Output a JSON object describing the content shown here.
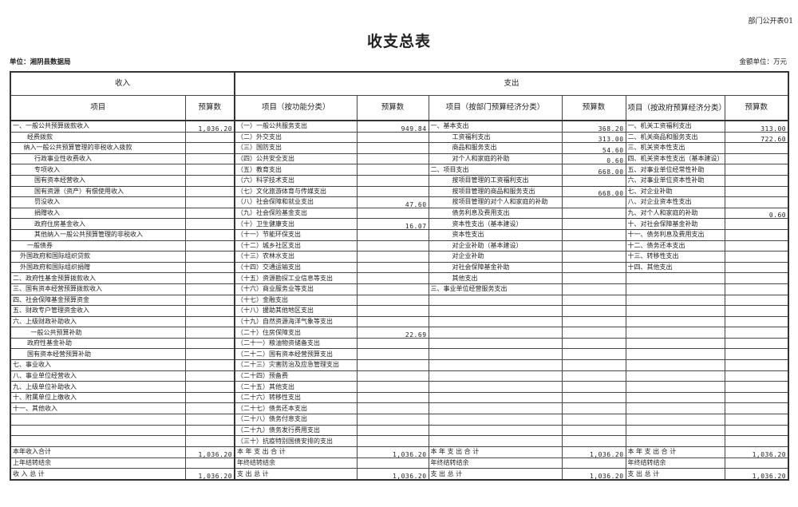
{
  "form_no": "部门公开表01",
  "title": "收支总表",
  "unit_label": "单位：湘阴县数据局",
  "money_unit": "金额单位：万元",
  "header": {
    "income": "收入",
    "expense": "支出",
    "col_item": "项目",
    "col_budget": "预算数",
    "col_func": "项目（按功能分类）",
    "col_dept_econ": "项目（按部门预算经济分类）",
    "col_gov_econ": "项目（按政府预算经济分类）"
  },
  "income_rows": [
    {
      "label": "一、一般公共预算拨款收入",
      "indent": 0,
      "amount": "1,036.20"
    },
    {
      "label": "经费拨款",
      "indent": 2,
      "amount": ""
    },
    {
      "label": "纳入一般公共预算管理的非税收入拨款",
      "indent": 1.5,
      "amount": ""
    },
    {
      "label": "行政事业性收费收入",
      "indent": 3,
      "amount": ""
    },
    {
      "label": "专项收入",
      "indent": 3,
      "amount": ""
    },
    {
      "label": "国有资本经营收入",
      "indent": 3,
      "amount": ""
    },
    {
      "label": "国有资源（资产）有偿使用收入",
      "indent": 3,
      "amount": ""
    },
    {
      "label": "罚没收入",
      "indent": 3,
      "amount": ""
    },
    {
      "label": "捐赠收入",
      "indent": 3,
      "amount": ""
    },
    {
      "label": "政府住房基金收入",
      "indent": 3,
      "amount": ""
    },
    {
      "label": "其他纳入一般公共预算管理的非税收入",
      "indent": 3,
      "amount": ""
    },
    {
      "label": "一般债券",
      "indent": 2,
      "amount": ""
    },
    {
      "label": "外国政府和国际组织贷款",
      "indent": 1,
      "amount": ""
    },
    {
      "label": "外国政府和国际组织捐赠",
      "indent": 1,
      "amount": ""
    },
    {
      "label": "二、政府性基金预算拨款收入",
      "indent": 0,
      "amount": ""
    },
    {
      "label": "三、国有资本经营预算拨款收入",
      "indent": 0,
      "amount": ""
    },
    {
      "label": "四、社会保障基金预算资金",
      "indent": 0,
      "amount": ""
    },
    {
      "label": "五、财政专户管理资金收入",
      "indent": 0,
      "amount": ""
    },
    {
      "label": "六、上级财政补助收入",
      "indent": 0,
      "amount": ""
    },
    {
      "label": "一般公共预算补助",
      "indent": 2.5,
      "amount": ""
    },
    {
      "label": "政府性基金补助",
      "indent": 2,
      "amount": ""
    },
    {
      "label": "国有资本经营预算补助",
      "indent": 2,
      "amount": ""
    },
    {
      "label": "七、事业收入",
      "indent": 0,
      "amount": ""
    },
    {
      "label": "八、事业单位经营收入",
      "indent": 0,
      "amount": ""
    },
    {
      "label": "九、上级单位补助收入",
      "indent": 0,
      "amount": ""
    },
    {
      "label": "十、附属单位上缴收入",
      "indent": 0,
      "amount": ""
    },
    {
      "label": "十一、其他收入",
      "indent": 0,
      "amount": ""
    }
  ],
  "func_rows": [
    {
      "label": "（一）一般公共服务支出",
      "amount": "949.84"
    },
    {
      "label": "（二）外交支出",
      "amount": ""
    },
    {
      "label": "（三）国防支出",
      "amount": ""
    },
    {
      "label": "（四）公共安全支出",
      "amount": ""
    },
    {
      "label": "（五）教育支出",
      "amount": ""
    },
    {
      "label": "（六）科学技术支出",
      "amount": ""
    },
    {
      "label": "（七）文化旅游体育与传媒支出",
      "amount": ""
    },
    {
      "label": "（八）社会保障和就业支出",
      "amount": "47.60"
    },
    {
      "label": "（九）社会保险基金支出",
      "amount": ""
    },
    {
      "label": "（十）卫生健康支出",
      "amount": "16.07"
    },
    {
      "label": "（十一）节能环保支出",
      "amount": ""
    },
    {
      "label": "（十二）城乡社区支出",
      "amount": ""
    },
    {
      "label": "（十三）农林水支出",
      "amount": ""
    },
    {
      "label": "（十四）交通运输支出",
      "amount": ""
    },
    {
      "label": "（十五）资源勘探工业信息等支出",
      "amount": ""
    },
    {
      "label": "（十六）商业服务业等支出",
      "amount": ""
    },
    {
      "label": "（十七）金融支出",
      "amount": ""
    },
    {
      "label": "（十八）援助其他地区支出",
      "amount": ""
    },
    {
      "label": "（十九）自然资源海洋气象等支出",
      "amount": ""
    },
    {
      "label": "（二十）住房保障支出",
      "amount": "22.69"
    },
    {
      "label": "（二十一）粮油物资储备支出",
      "amount": ""
    },
    {
      "label": "（二十二）国有资本经营预算支出",
      "amount": ""
    },
    {
      "label": "（二十三）灾害防治及应急管理支出",
      "amount": ""
    },
    {
      "label": "（二十四）预备费",
      "amount": ""
    },
    {
      "label": "（二十五）其他支出",
      "amount": ""
    },
    {
      "label": "（二十六）转移性支出",
      "amount": ""
    },
    {
      "label": "（二十七）债务还本支出",
      "amount": ""
    },
    {
      "label": "（二十八）债务付息支出",
      "amount": ""
    },
    {
      "label": "（二十九）债务发行费用支出",
      "amount": ""
    },
    {
      "label": "（三十）抗疫特别国债安排的支出",
      "amount": ""
    }
  ],
  "dept_econ_rows": [
    {
      "label": "一、基本支出",
      "indent": 0,
      "amount": "368.20"
    },
    {
      "label": "工资福利支出",
      "indent": 1,
      "amount": "313.00"
    },
    {
      "label": "商品和服务支出",
      "indent": 1,
      "amount": "54.60"
    },
    {
      "label": "对个人和家庭的补助",
      "indent": 1,
      "amount": "0.60"
    },
    {
      "label": "二、项目支出",
      "indent": 0,
      "amount": "668.00"
    },
    {
      "label": "按项目管理的工资福利支出",
      "indent": 1,
      "amount": ""
    },
    {
      "label": "按项目管理的商品和服务支出",
      "indent": 1,
      "amount": "668.00"
    },
    {
      "label": "按项目管理的对个人和家庭的补助",
      "indent": 1,
      "amount": ""
    },
    {
      "label": "债务利息及费用支出",
      "indent": 1,
      "amount": ""
    },
    {
      "label": "资本性支出（基本建设）",
      "indent": 1,
      "amount": ""
    },
    {
      "label": "资本性支出",
      "indent": 1,
      "amount": ""
    },
    {
      "label": "对企业补助（基本建设）",
      "indent": 1,
      "amount": ""
    },
    {
      "label": "对企业补助",
      "indent": 1,
      "amount": ""
    },
    {
      "label": "对社会保障基金补助",
      "indent": 1,
      "amount": ""
    },
    {
      "label": "其他支出",
      "indent": 1,
      "amount": ""
    },
    {
      "label": "三、事业单位经营服务支出",
      "indent": 0,
      "amount": ""
    }
  ],
  "gov_econ_rows": [
    {
      "label": "一、机关工资福利支出",
      "amount": "313.00"
    },
    {
      "label": "二、机关商品和服务支出",
      "amount": "722.60"
    },
    {
      "label": "三、机关资本性支出",
      "amount": ""
    },
    {
      "label": "四、机关资本性支出（基本建设）",
      "amount": ""
    },
    {
      "label": "五、对事业单位经常性补助",
      "amount": ""
    },
    {
      "label": "六、对事业单位资本性补助",
      "amount": ""
    },
    {
      "label": "七、对企业补助",
      "amount": ""
    },
    {
      "label": "八、对企业资本性支出",
      "amount": ""
    },
    {
      "label": "九、对个人和家庭的补助",
      "amount": "0.60"
    },
    {
      "label": "十、对社会保障基金补助",
      "amount": ""
    },
    {
      "label": "十一、债务利息及费用支出",
      "amount": ""
    },
    {
      "label": "十二、债务还本支出",
      "amount": ""
    },
    {
      "label": "十三、转移性支出",
      "amount": ""
    },
    {
      "label": "十四、其他支出",
      "amount": ""
    }
  ],
  "summary_rows": [
    {
      "income_label": "本年收入合计",
      "income_amount": "1,036.20",
      "exp_label": "本 年 支 出 合 计",
      "func_amount": "1,036.20",
      "dept_amount": "1,036.20",
      "gov_amount": "1,036.20"
    },
    {
      "income_label": "上年结转结余",
      "income_amount": "",
      "exp_label": "年终结转结余",
      "func_amount": "",
      "dept_amount": "",
      "gov_amount": ""
    },
    {
      "income_label": "收 入 总 计",
      "income_amount": "1,036.20",
      "exp_label": "支 出 总 计",
      "func_amount": "1,036.20",
      "dept_amount": "1,036.20",
      "gov_amount": "1,036.20"
    }
  ]
}
